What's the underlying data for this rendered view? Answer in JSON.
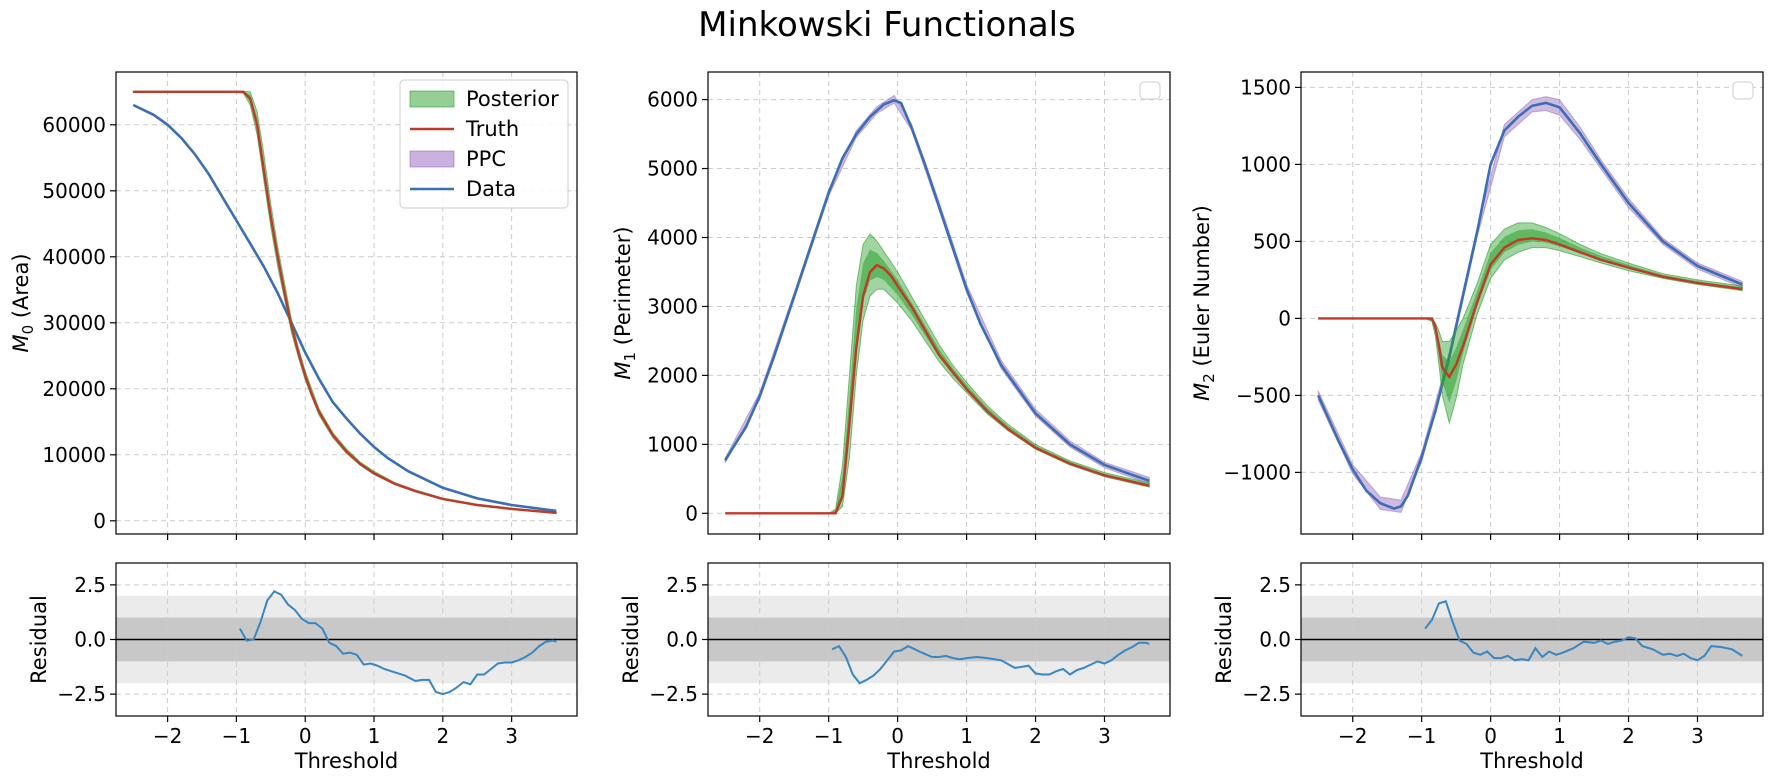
{
  "figure_title": "Minkowski Functionals",
  "colors": {
    "posterior": "#2ca02c",
    "truth": "#c0392b",
    "ppc": "#9467bd",
    "data": "#3a6fb5",
    "residual_line": "#3a86c0",
    "band1": "#c8c8c8",
    "band2": "#ebebeb",
    "grid": "#cccccc"
  },
  "legend": {
    "posterior": "Posterior",
    "truth": "Truth",
    "ppc": "PPC",
    "data": "Data"
  },
  "chart_data": [
    {
      "type": "line",
      "panel": "M0",
      "ylabel_math": "M",
      "ylabel_sub": "0",
      "ylabel_text": " (Area)",
      "xlim": [
        -2.75,
        3.95
      ],
      "ylim": [
        -2000,
        68000
      ],
      "yticks": [
        0,
        10000,
        20000,
        30000,
        40000,
        50000,
        60000
      ],
      "ytick_labels": [
        "0",
        "10000",
        "20000",
        "30000",
        "40000",
        "50000",
        "60000"
      ],
      "xticks": [
        -2,
        -1,
        0,
        1,
        2,
        3
      ],
      "legend": "full",
      "data_series": {
        "x": [
          -2.5,
          -2.2,
          -2.0,
          -1.8,
          -1.6,
          -1.4,
          -1.2,
          -1.0,
          -0.8,
          -0.6,
          -0.4,
          -0.2,
          0.0,
          0.2,
          0.4,
          0.6,
          0.8,
          1.0,
          1.2,
          1.5,
          2.0,
          2.5,
          3.0,
          3.65
        ],
        "y": [
          63000,
          61500,
          60000,
          58000,
          55500,
          52500,
          49000,
          45500,
          42000,
          38500,
          34500,
          30000,
          25500,
          21500,
          18000,
          15500,
          13200,
          11200,
          9500,
          7500,
          5000,
          3400,
          2400,
          1500
        ]
      },
      "truth_series": {
        "x": [
          -2.5,
          -1.0,
          -0.9,
          -0.8,
          -0.7,
          -0.6,
          -0.5,
          -0.4,
          -0.3,
          -0.2,
          -0.1,
          0.0,
          0.1,
          0.2,
          0.4,
          0.6,
          0.8,
          1.0,
          1.3,
          1.6,
          2.0,
          2.5,
          3.0,
          3.65
        ],
        "y": [
          65000,
          65000,
          65000,
          64000,
          60000,
          53000,
          46000,
          40000,
          34500,
          29500,
          25500,
          22000,
          19000,
          16500,
          13000,
          10500,
          8600,
          7200,
          5600,
          4500,
          3300,
          2400,
          1800,
          1200
        ]
      },
      "posterior_band": {
        "x": [
          -2.5,
          -1.0,
          -0.9,
          -0.8,
          -0.7,
          -0.6,
          -0.5,
          -0.4,
          -0.3,
          -0.2,
          -0.1,
          0.0,
          0.2,
          0.4,
          0.6,
          0.8,
          1.0,
          1.3,
          1.6,
          2.0,
          2.5,
          3.0,
          3.65
        ],
        "lo": [
          64900,
          64900,
          64800,
          63000,
          58500,
          51500,
          44500,
          38500,
          33500,
          28500,
          24800,
          21300,
          16000,
          12600,
          10200,
          8400,
          7000,
          5500,
          4400,
          3200,
          2300,
          1700,
          1150
        ],
        "hi": [
          65100,
          65100,
          65100,
          65000,
          62000,
          55500,
          48000,
          41500,
          36000,
          30500,
          26300,
          22700,
          17000,
          13400,
          10900,
          8900,
          7500,
          5800,
          4700,
          3450,
          2500,
          1900,
          1300
        ]
      },
      "residual": {
        "x": [
          -0.95,
          -0.85,
          -0.75,
          -0.65,
          -0.55,
          -0.45,
          -0.35,
          -0.25,
          -0.15,
          -0.05,
          0.05,
          0.15,
          0.25,
          0.35,
          0.45,
          0.55,
          0.65,
          0.75,
          0.85,
          0.95,
          1.05,
          1.15,
          1.3,
          1.45,
          1.6,
          1.7,
          1.8,
          1.9,
          2.0,
          2.1,
          2.2,
          2.3,
          2.4,
          2.5,
          2.6,
          2.7,
          2.8,
          2.9,
          3.0,
          3.1,
          3.2,
          3.3,
          3.4,
          3.5,
          3.6,
          3.65
        ],
        "y": [
          0.5,
          -0.05,
          0.0,
          0.8,
          1.8,
          2.2,
          2.05,
          1.6,
          1.35,
          0.95,
          0.75,
          0.75,
          0.5,
          -0.15,
          -0.3,
          -0.65,
          -0.6,
          -0.7,
          -1.15,
          -1.1,
          -1.2,
          -1.35,
          -1.5,
          -1.65,
          -1.9,
          -1.85,
          -1.85,
          -2.4,
          -2.5,
          -2.4,
          -2.2,
          -1.95,
          -2.05,
          -1.6,
          -1.6,
          -1.35,
          -1.1,
          -1.05,
          -1.05,
          -0.95,
          -0.8,
          -0.6,
          -0.3,
          -0.1,
          -0.05,
          -0.1
        ]
      }
    },
    {
      "type": "line",
      "panel": "M1",
      "ylabel_math": "M",
      "ylabel_sub": "1",
      "ylabel_text": " (Perimeter)",
      "xlim": [
        -2.75,
        3.95
      ],
      "ylim": [
        -300,
        6400
      ],
      "yticks": [
        0,
        1000,
        2000,
        3000,
        4000,
        5000,
        6000
      ],
      "ytick_labels": [
        "0",
        "1000",
        "2000",
        "3000",
        "4000",
        "5000",
        "6000"
      ],
      "xticks": [
        -2,
        -1,
        0,
        1,
        2,
        3
      ],
      "legend": "empty",
      "data_series": {
        "x": [
          -2.5,
          -2.2,
          -2.0,
          -1.8,
          -1.6,
          -1.4,
          -1.2,
          -1.0,
          -0.8,
          -0.6,
          -0.4,
          -0.2,
          -0.05,
          0.05,
          0.2,
          0.4,
          0.6,
          0.8,
          1.0,
          1.2,
          1.5,
          2.0,
          2.5,
          3.0,
          3.65
        ],
        "y": [
          770,
          1250,
          1700,
          2250,
          2850,
          3450,
          4050,
          4650,
          5150,
          5500,
          5750,
          5930,
          5990,
          5950,
          5600,
          5050,
          4450,
          3850,
          3250,
          2750,
          2150,
          1450,
          1000,
          700,
          470
        ]
      },
      "ppc_band": {
        "x": [
          -2.5,
          -2.0,
          -1.5,
          -1.0,
          -0.6,
          -0.3,
          -0.05,
          0.2,
          0.6,
          1.0,
          1.5,
          2.0,
          2.5,
          3.0,
          3.65
        ],
        "lo": [
          730,
          1650,
          3100,
          4600,
          5450,
          5800,
          5950,
          5560,
          4400,
          3200,
          2100,
          1410,
          960,
          660,
          430
        ],
        "hi": [
          800,
          1750,
          3200,
          4700,
          5550,
          5900,
          6060,
          5650,
          4520,
          3320,
          2220,
          1510,
          1050,
          740,
          520
        ]
      },
      "truth_series": {
        "x": [
          -2.5,
          -1.0,
          -0.9,
          -0.8,
          -0.7,
          -0.6,
          -0.5,
          -0.4,
          -0.3,
          -0.2,
          -0.1,
          0.0,
          0.2,
          0.4,
          0.6,
          0.8,
          1.0,
          1.3,
          1.6,
          2.0,
          2.5,
          3.0,
          3.65
        ],
        "y": [
          0,
          0,
          0,
          250,
          1300,
          2400,
          3150,
          3500,
          3600,
          3550,
          3450,
          3300,
          3000,
          2650,
          2300,
          2050,
          1800,
          1480,
          1220,
          950,
          720,
          550,
          400
        ]
      },
      "posterior_band": {
        "x": [
          -2.5,
          -1.0,
          -0.9,
          -0.8,
          -0.7,
          -0.6,
          -0.5,
          -0.4,
          -0.3,
          -0.2,
          -0.1,
          0.0,
          0.2,
          0.4,
          0.6,
          0.8,
          1.0,
          1.3,
          1.6,
          2.0,
          2.5,
          3.0,
          3.65
        ],
        "lo": [
          0,
          0,
          0,
          100,
          800,
          2000,
          2800,
          3150,
          3250,
          3250,
          3150,
          3050,
          2800,
          2500,
          2200,
          1960,
          1750,
          1440,
          1200,
          930,
          700,
          530,
          380
        ],
        "hi": [
          0,
          0,
          60,
          700,
          2000,
          3300,
          3900,
          4050,
          3950,
          3800,
          3650,
          3500,
          3150,
          2800,
          2450,
          2150,
          1900,
          1560,
          1290,
          1000,
          760,
          590,
          440
        ]
      },
      "residual": {
        "x": [
          -0.95,
          -0.85,
          -0.75,
          -0.65,
          -0.55,
          -0.45,
          -0.35,
          -0.25,
          -0.15,
          -0.05,
          0.05,
          0.15,
          0.25,
          0.35,
          0.5,
          0.6,
          0.7,
          0.8,
          0.9,
          1.0,
          1.15,
          1.3,
          1.5,
          1.7,
          1.8,
          1.9,
          2.0,
          2.1,
          2.2,
          2.3,
          2.4,
          2.5,
          2.6,
          2.7,
          2.8,
          2.9,
          3.0,
          3.1,
          3.2,
          3.3,
          3.4,
          3.5,
          3.6,
          3.65
        ],
        "y": [
          -0.45,
          -0.3,
          -0.8,
          -1.6,
          -2.0,
          -1.85,
          -1.65,
          -1.35,
          -0.95,
          -0.55,
          -0.5,
          -0.3,
          -0.45,
          -0.6,
          -0.8,
          -0.8,
          -0.75,
          -0.85,
          -0.9,
          -0.85,
          -0.8,
          -0.85,
          -0.95,
          -1.3,
          -1.25,
          -1.2,
          -1.55,
          -1.6,
          -1.6,
          -1.45,
          -1.35,
          -1.6,
          -1.4,
          -1.3,
          -1.15,
          -1.0,
          -1.1,
          -0.95,
          -0.7,
          -0.5,
          -0.35,
          -0.15,
          -0.15,
          -0.2
        ]
      }
    },
    {
      "type": "line",
      "panel": "M2",
      "ylabel_math": "M",
      "ylabel_sub": "2",
      "ylabel_text": " (Euler Number)",
      "xlim": [
        -2.75,
        3.95
      ],
      "ylim": [
        -1400,
        1600
      ],
      "yticks": [
        -1000,
        -500,
        0,
        500,
        1000,
        1500
      ],
      "ytick_labels": [
        "−1000",
        "−500",
        "0",
        "500",
        "1000",
        "1500"
      ],
      "xticks": [
        -2,
        -1,
        0,
        1,
        2,
        3
      ],
      "legend": "empty",
      "data_series": {
        "x": [
          -2.5,
          -2.2,
          -2.0,
          -1.8,
          -1.6,
          -1.4,
          -1.3,
          -1.2,
          -1.0,
          -0.8,
          -0.6,
          -0.4,
          -0.2,
          0.0,
          0.2,
          0.4,
          0.6,
          0.8,
          1.0,
          1.3,
          1.6,
          2.0,
          2.5,
          3.0,
          3.65
        ],
        "y": [
          -500,
          -800,
          -980,
          -1120,
          -1200,
          -1235,
          -1220,
          -1150,
          -900,
          -600,
          -250,
          150,
          550,
          1000,
          1220,
          1310,
          1380,
          1400,
          1370,
          1200,
          1000,
          750,
          500,
          340,
          220
        ]
      },
      "ppc_band": {
        "x": [
          -2.5,
          -2.0,
          -1.6,
          -1.3,
          -1.0,
          -0.6,
          -0.2,
          0.2,
          0.6,
          0.8,
          1.0,
          1.3,
          1.6,
          2.0,
          2.5,
          3.0,
          3.65
        ],
        "lo": [
          -530,
          -1010,
          -1240,
          -1260,
          -930,
          -280,
          520,
          1180,
          1340,
          1350,
          1320,
          1160,
          970,
          720,
          480,
          320,
          200
        ],
        "hi": [
          -470,
          -950,
          -1160,
          -1180,
          -870,
          -220,
          580,
          1260,
          1420,
          1440,
          1420,
          1240,
          1030,
          780,
          520,
          360,
          240
        ]
      },
      "truth_series": {
        "x": [
          -2.5,
          -0.95,
          -0.85,
          -0.8,
          -0.75,
          -0.7,
          -0.6,
          -0.5,
          -0.4,
          -0.2,
          0.0,
          0.2,
          0.4,
          0.6,
          0.8,
          1.0,
          1.3,
          1.6,
          2.0,
          2.5,
          3.0,
          3.65
        ],
        "y": [
          0,
          0,
          0,
          -60,
          -180,
          -320,
          -380,
          -300,
          -180,
          100,
          350,
          460,
          510,
          520,
          510,
          480,
          430,
          380,
          330,
          270,
          230,
          190
        ]
      },
      "posterior_band": {
        "x": [
          -2.5,
          -0.95,
          -0.85,
          -0.8,
          -0.75,
          -0.7,
          -0.6,
          -0.5,
          -0.4,
          -0.2,
          0.0,
          0.2,
          0.4,
          0.6,
          0.8,
          1.0,
          1.3,
          1.6,
          2.0,
          2.5,
          3.0,
          3.65
        ],
        "lo": [
          0,
          0,
          -20,
          -120,
          -300,
          -500,
          -680,
          -520,
          -300,
          20,
          260,
          380,
          430,
          460,
          460,
          440,
          400,
          360,
          310,
          260,
          220,
          180
        ],
        "hi": [
          0,
          0,
          0,
          -30,
          -80,
          -150,
          -150,
          -80,
          0,
          220,
          480,
          580,
          620,
          620,
          590,
          550,
          480,
          420,
          360,
          290,
          250,
          210
        ]
      },
      "residual": {
        "x": [
          -0.95,
          -0.85,
          -0.75,
          -0.65,
          -0.55,
          -0.45,
          -0.35,
          -0.25,
          -0.15,
          -0.05,
          0.05,
          0.15,
          0.25,
          0.35,
          0.45,
          0.55,
          0.65,
          0.75,
          0.85,
          0.95,
          1.05,
          1.2,
          1.35,
          1.5,
          1.6,
          1.7,
          1.8,
          1.9,
          2.0,
          2.1,
          2.2,
          2.35,
          2.5,
          2.6,
          2.7,
          2.8,
          2.9,
          3.0,
          3.1,
          3.2,
          3.35,
          3.5,
          3.65
        ],
        "y": [
          0.5,
          0.9,
          1.65,
          1.75,
          0.8,
          -0.05,
          -0.2,
          -0.6,
          -0.7,
          -0.55,
          -0.85,
          -0.85,
          -0.75,
          -0.95,
          -0.9,
          -0.95,
          -0.4,
          -0.8,
          -0.55,
          -0.7,
          -0.6,
          -0.4,
          -0.1,
          -0.15,
          -0.05,
          -0.2,
          -0.1,
          -0.05,
          0.1,
          0.05,
          -0.3,
          -0.45,
          -0.7,
          -0.65,
          -0.75,
          -0.65,
          -0.85,
          -0.95,
          -0.75,
          -0.3,
          -0.35,
          -0.45,
          -0.75
        ]
      }
    }
  ],
  "residual_axes": {
    "ylabel": "Residual",
    "ylim": [
      -3.5,
      3.5
    ],
    "yticks": [
      -2.5,
      0.0,
      2.5
    ],
    "ytick_labels": [
      "−2.5",
      "0.0",
      "2.5"
    ],
    "xlabel": "Threshold",
    "xticks": [
      -2,
      -1,
      0,
      1,
      2,
      3
    ],
    "xtick_labels": [
      "−2",
      "−1",
      "0",
      "1",
      "2",
      "3"
    ],
    "band1": [
      -1,
      1
    ],
    "band2": [
      -2,
      2
    ]
  }
}
